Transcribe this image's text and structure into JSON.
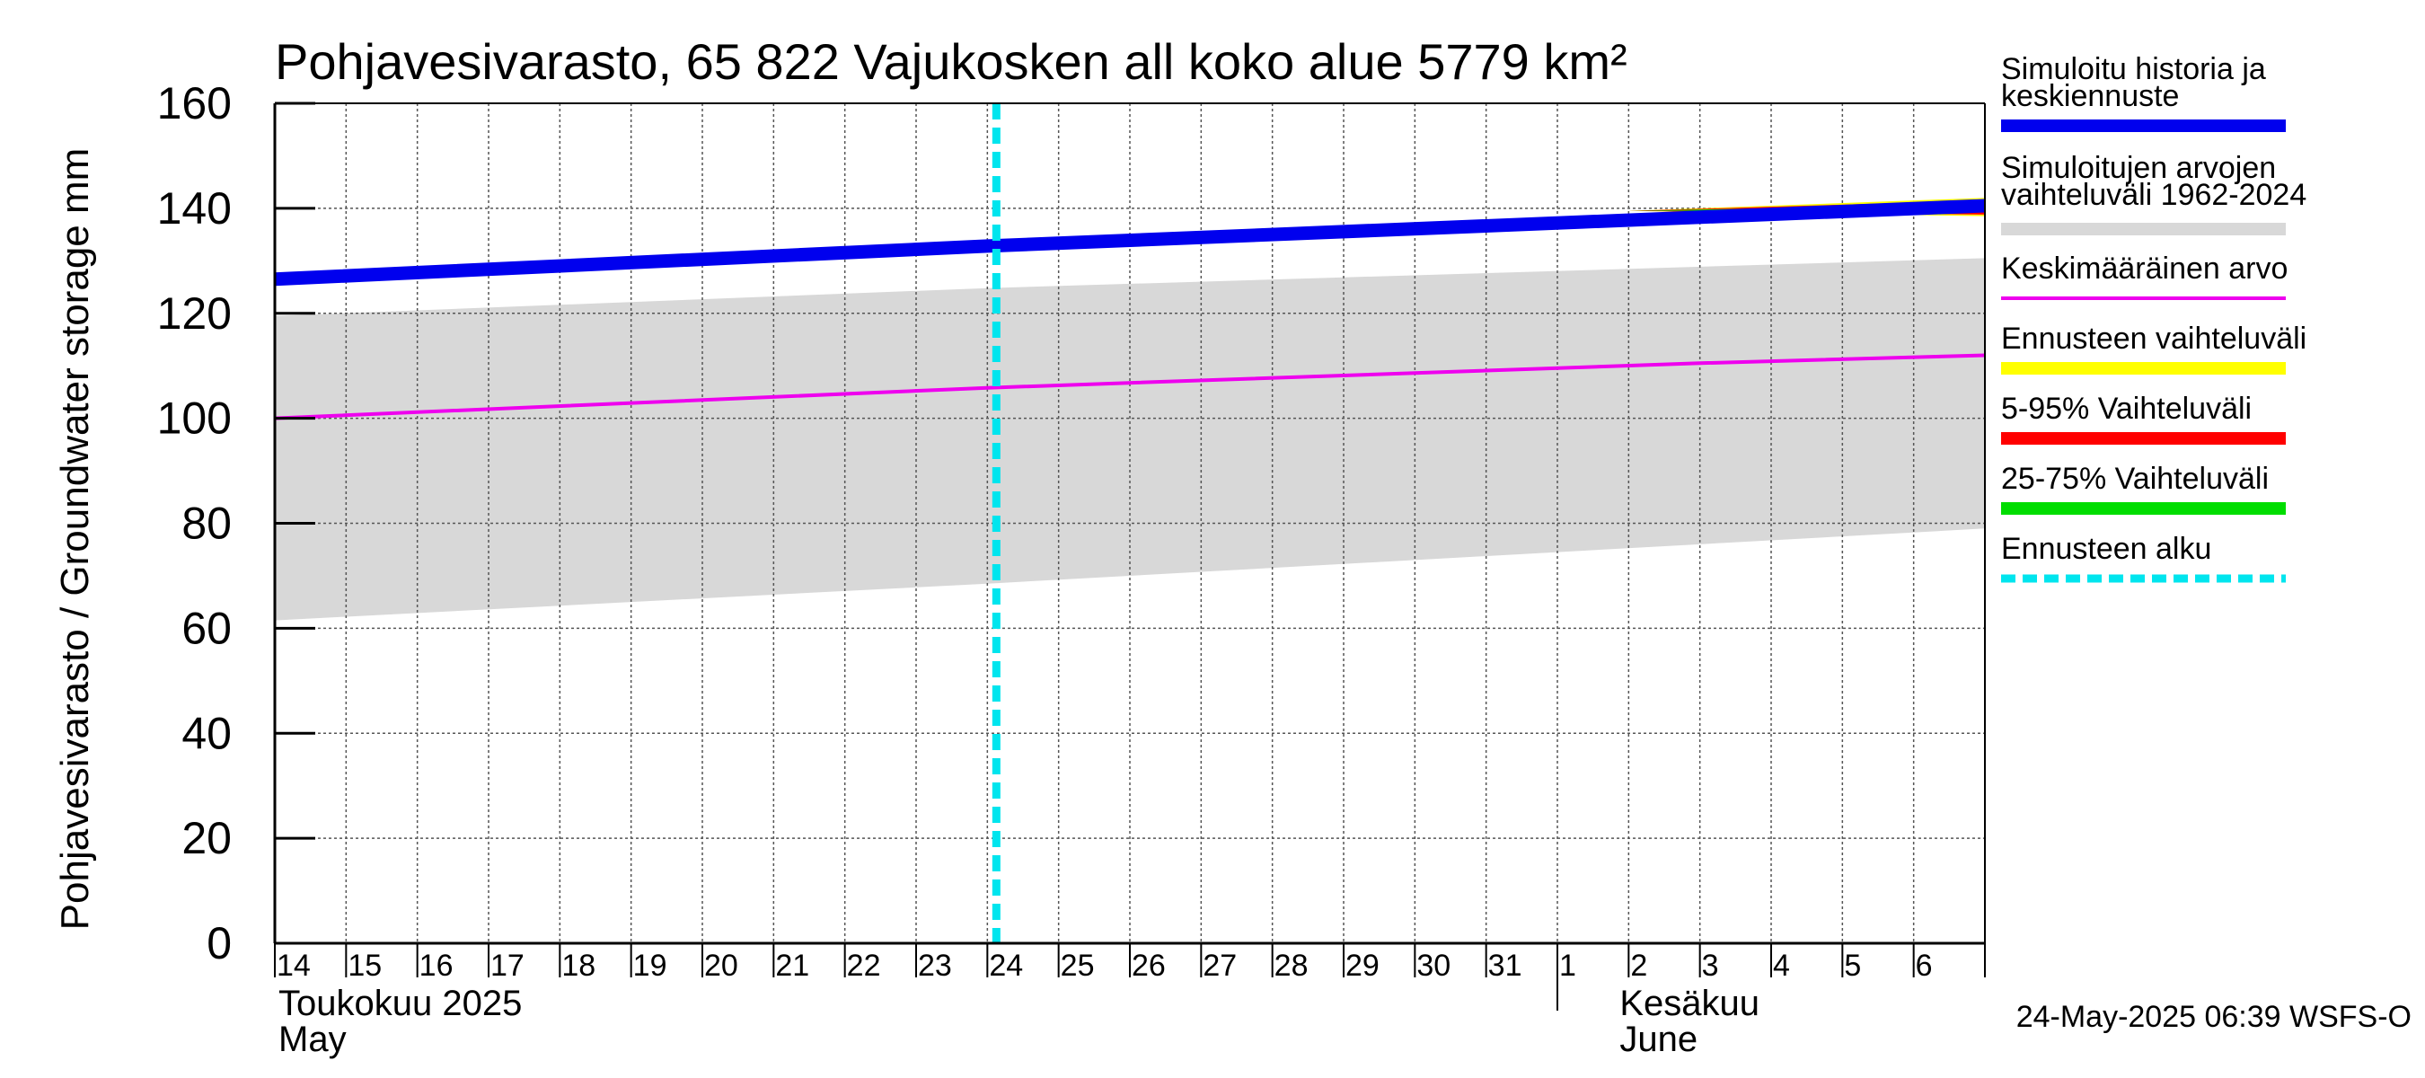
{
  "chart_data": {
    "type": "line",
    "title": "Pohjavesivarasto, 65 822 Vajukosken all koko alue 5779 km²",
    "ylabel": "Pohjavesivarasto / Groundwater storage   mm",
    "ylim": [
      0,
      160
    ],
    "yticks": [
      0,
      20,
      40,
      60,
      80,
      100,
      120,
      140,
      160
    ],
    "x_start": "2025-05-14",
    "x_end": "2025-06-07",
    "day_labels": [
      "14",
      "15",
      "16",
      "17",
      "18",
      "19",
      "20",
      "21",
      "22",
      "23",
      "24",
      "25",
      "26",
      "27",
      "28",
      "29",
      "30",
      "31",
      "1",
      "2",
      "3",
      "4",
      "5",
      "6"
    ],
    "month_labels": [
      {
        "line1": "Toukokuu  2025",
        "line2": "May"
      },
      {
        "line1": "Kesäkuu",
        "line2": "June"
      }
    ],
    "grid": true,
    "forecast_start": "2025-05-24",
    "series": [
      {
        "name": "Simuloitu historia ja keskiennuste",
        "color": "#0000ee",
        "x": [
          "2025-05-14",
          "2025-05-24",
          "2025-06-07"
        ],
        "values": [
          126.5,
          132.8,
          140.5
        ]
      },
      {
        "name": "Keskimääräinen arvo",
        "color": "#ee00ee",
        "x": [
          "2025-05-14",
          "2025-05-24",
          "2025-06-03",
          "2025-06-07"
        ],
        "values": [
          100,
          105.8,
          110.5,
          112
        ]
      }
    ],
    "range_band": {
      "name": "Simuloitujen arvojen vaihteluväli 1962-2024",
      "color": "#d8d8d8",
      "x": [
        "2025-05-14",
        "2025-05-24",
        "2025-06-07"
      ],
      "upper": [
        119.5,
        124.8,
        130.5
      ],
      "lower": [
        61.5,
        68.5,
        79
      ]
    },
    "forecast_bands": [
      {
        "name": "Ennusteen vaihteluväli",
        "color": "#ffff00",
        "x": [
          "2025-06-02",
          "2025-06-07"
        ],
        "upper": [
          139.5,
          142
        ],
        "lower": [
          139.5,
          138.5
        ]
      },
      {
        "name": "5-95% Vaihteluväli",
        "color": "#ff0000",
        "x": [
          "2025-06-02",
          "2025-06-07"
        ],
        "upper": [
          139.5,
          141.5
        ],
        "lower": [
          139.5,
          138.8
        ]
      },
      {
        "name": "25-75% Vaihteluväli",
        "color": "#00dd00",
        "x": [
          "2025-06-02",
          "2025-06-07"
        ],
        "upper": [
          139.5,
          140.8
        ],
        "lower": [
          139.5,
          139.6
        ]
      }
    ],
    "legend": {
      "placement": "right",
      "entries": [
        {
          "label1": "Simuloitu historia ja",
          "label2": "keskiennuste",
          "color": "#0000ee",
          "style": "solid"
        },
        {
          "label1": "Simuloitujen arvojen",
          "label2": "vaihteluväli 1962-2024",
          "color": "#d8d8d8",
          "style": "solid"
        },
        {
          "label1": "Keskimääräinen arvo",
          "label2": "",
          "color": "#ee00ee",
          "style": "thin"
        },
        {
          "label1": "Ennusteen vaihteluväli",
          "label2": "",
          "color": "#ffff00",
          "style": "solid"
        },
        {
          "label1": "5-95% Vaihteluväli",
          "label2": "",
          "color": "#ff0000",
          "style": "solid"
        },
        {
          "label1": "25-75% Vaihteluväli",
          "label2": "",
          "color": "#00dd00",
          "style": "solid"
        },
        {
          "label1": "Ennusteen alku",
          "label2": "",
          "color": "#00e5ee",
          "style": "dashed"
        }
      ]
    },
    "footer": "24-May-2025 06:39 WSFS-O"
  }
}
